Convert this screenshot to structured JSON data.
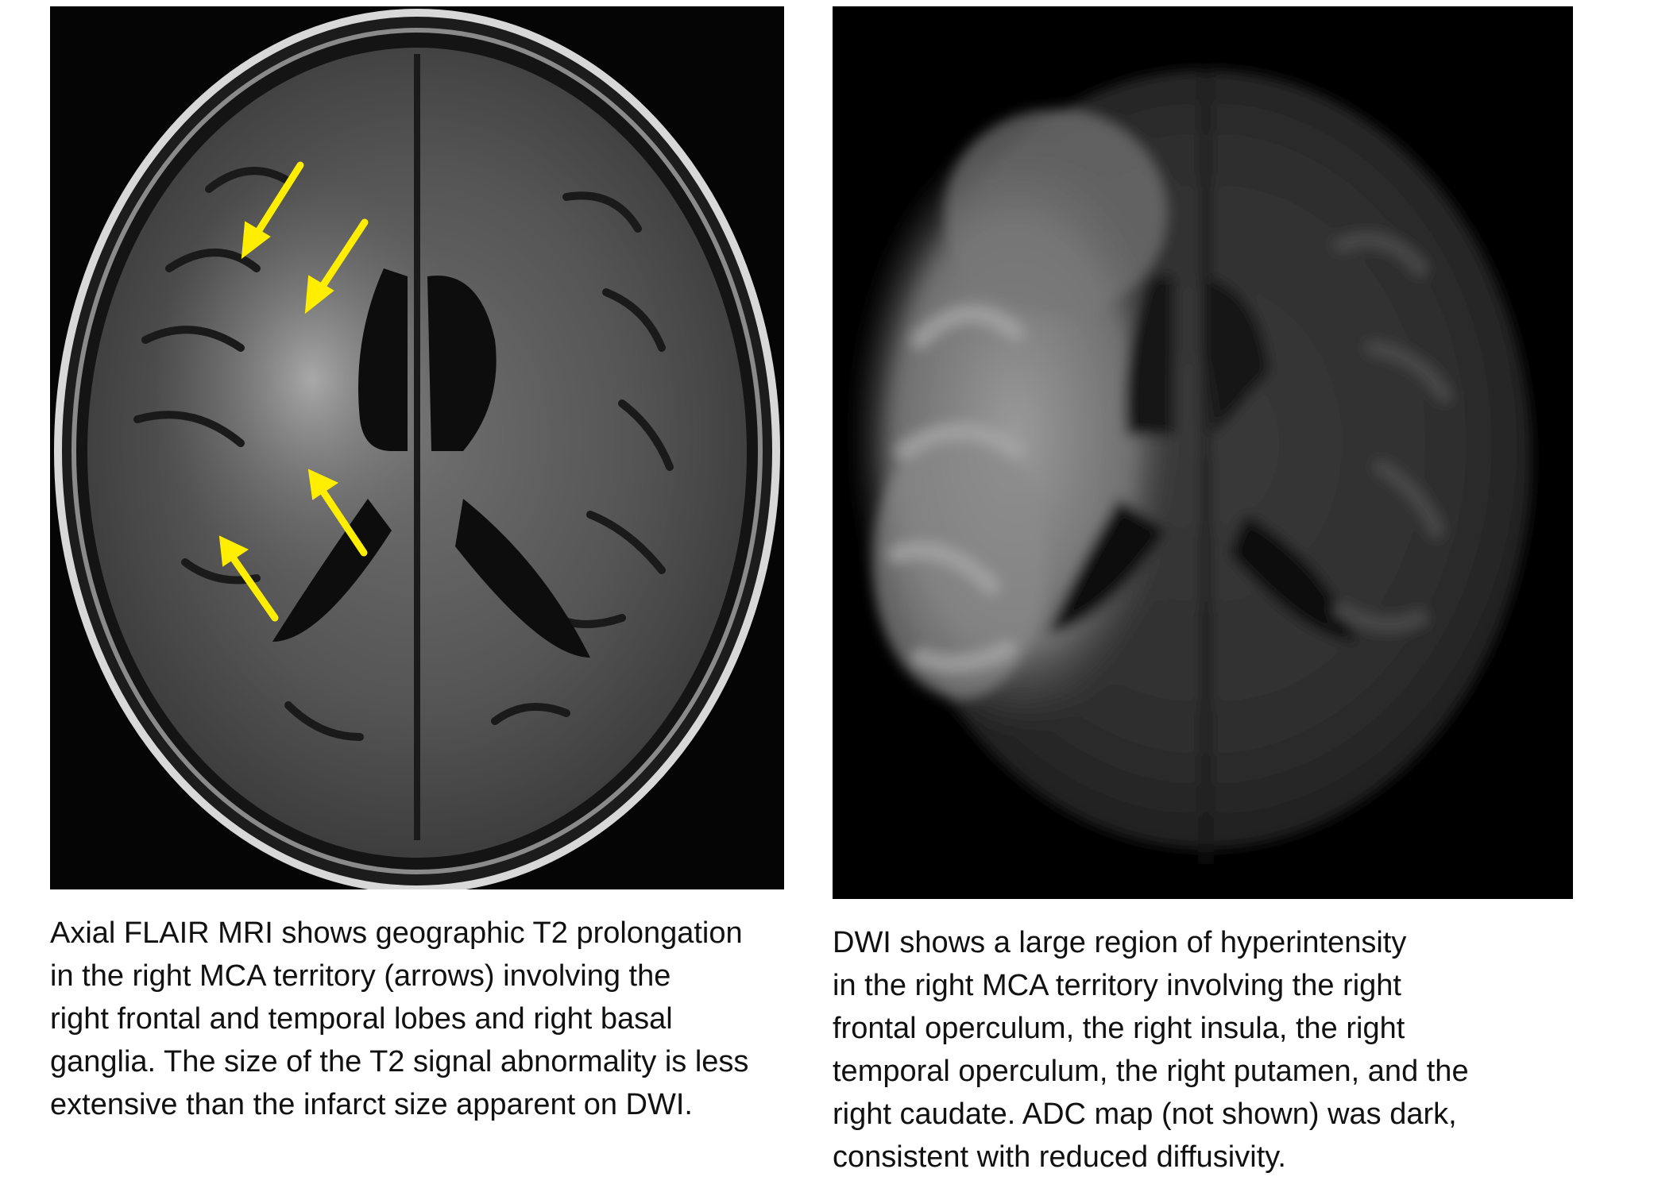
{
  "figure": {
    "left_panel": {
      "image_description_name": "axial-flair-mri",
      "arrow_color": "#ffee00",
      "arrow_count": 4,
      "caption": "Axial FLAIR MRI shows geographic T2 prolongation\nin the right MCA territory (arrows) involving the\nright frontal and temporal lobes and right basal\nganglia. The size of the T2 signal abnormality is less\nextensive than the infarct size apparent on DWI."
    },
    "right_panel": {
      "image_description_name": "dwi-mri",
      "caption": "DWI shows a large region of hyperintensity\nin the right MCA territory involving the right\nfrontal operculum, the right insula, the right\ntemporal operculum, the right putamen, and the\nright caudate. ADC map (not shown) was dark,\nconsistent with reduced diffusivity."
    }
  }
}
